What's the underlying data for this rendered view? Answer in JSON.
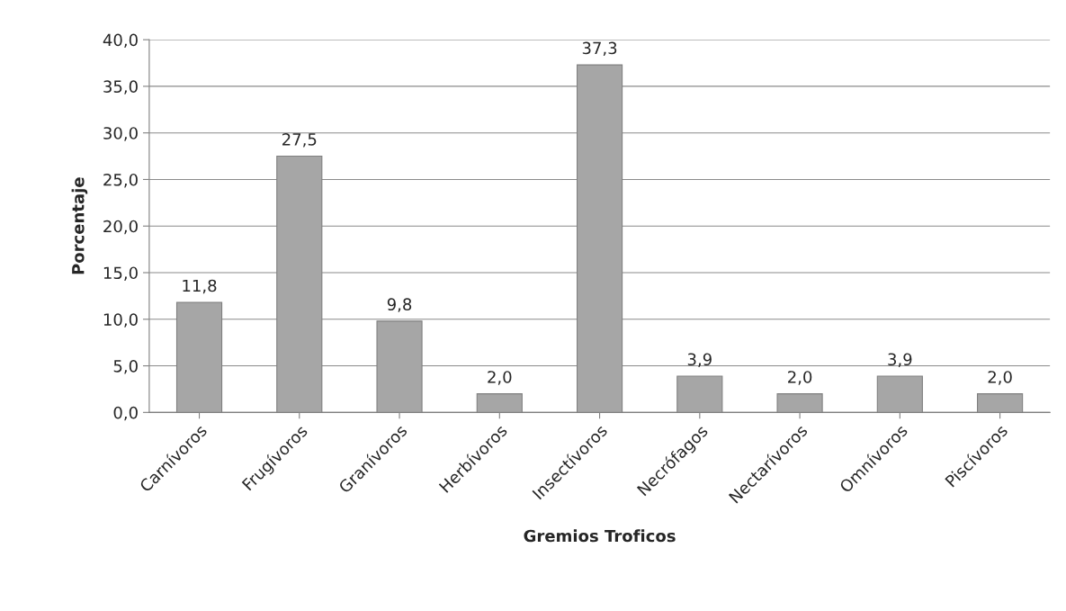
{
  "chart_data": {
    "type": "bar",
    "xlabel": "Gremios Troficos",
    "ylabel": "Porcentaje",
    "categories": [
      "Carnívoros",
      "Frugívoros",
      "Granívoros",
      "Herbívoros",
      "Insectívoros",
      "Necrófagos",
      "Nectarívoros",
      "Omnívoros",
      "Piscívoros"
    ],
    "values": [
      11.8,
      27.5,
      9.8,
      2.0,
      37.3,
      3.9,
      2.0,
      3.9,
      2.0
    ],
    "value_labels": [
      "11,8",
      "27,5",
      "9,8",
      "2,0",
      "37,3",
      "3,9",
      "2,0",
      "3,9",
      "2,0"
    ],
    "color": "#a6a6a6",
    "ylim": [
      0,
      40
    ],
    "yticks": [
      {
        "value": 0,
        "label": "0,0"
      },
      {
        "value": 5,
        "label": "5,0"
      },
      {
        "value": 10,
        "label": "10,0"
      },
      {
        "value": 15,
        "label": "15,0"
      },
      {
        "value": 20,
        "label": "20,0"
      },
      {
        "value": 25,
        "label": "25,0"
      },
      {
        "value": 30,
        "label": "30,0"
      },
      {
        "value": 35,
        "label": "35,0"
      },
      {
        "value": 40,
        "label": "40,0"
      }
    ],
    "grid": "y",
    "legend": false
  }
}
